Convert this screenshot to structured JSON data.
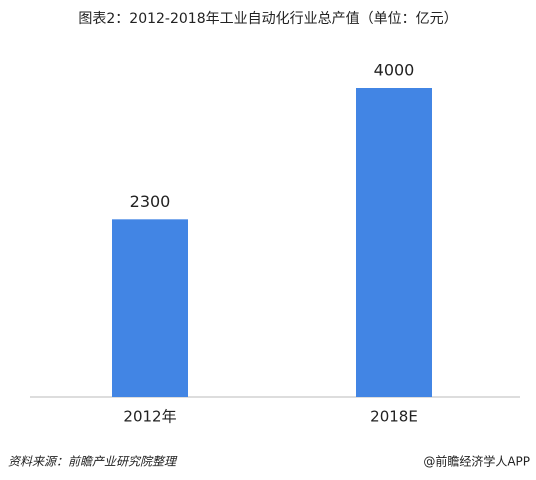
{
  "chart_data": {
    "type": "bar",
    "title": "图表2：2012-2018年工业自动化行业总产值（单位：亿元）",
    "categories": [
      "2012年",
      "2018E"
    ],
    "values": [
      2300,
      4000
    ],
    "color": "#4285e4",
    "source": "资料来源：前瞻产业研究院整理",
    "credit": "@前瞻经济学人APP"
  }
}
